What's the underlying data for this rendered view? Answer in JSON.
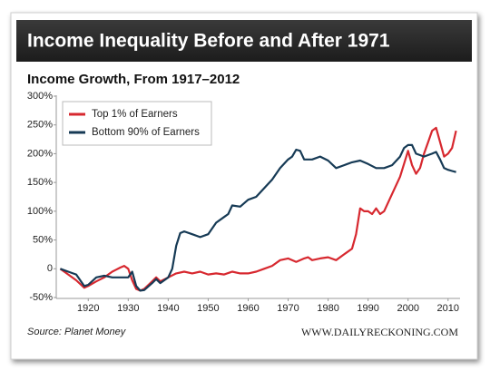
{
  "chart_data": {
    "type": "line",
    "title": "Income Inequality Before and After 1971",
    "subtitle": "Income Growth, From 1917–2012",
    "source": "Source: Planet Money",
    "credit": "WWW.DAILYRECKONING.COM",
    "xlim": [
      1912,
      2013
    ],
    "xticks": [
      1920,
      1930,
      1940,
      1950,
      1960,
      1970,
      1980,
      1990,
      2000,
      2010
    ],
    "ylim": [
      -50,
      300
    ],
    "yticks": [
      {
        "value": -50,
        "label": "-50%"
      },
      {
        "value": 0,
        "label": "0"
      },
      {
        "value": 50,
        "label": "50%"
      },
      {
        "value": 100,
        "label": "100%"
      },
      {
        "value": 150,
        "label": "150%"
      },
      {
        "value": 200,
        "label": "200%"
      },
      {
        "value": 250,
        "label": "250%"
      },
      {
        "value": 300,
        "label": "300%"
      }
    ],
    "legend": "upper left",
    "series": [
      {
        "name": "Top 1% of Earners",
        "color": "#d7282f",
        "x": [
          1913,
          1915,
          1917,
          1919,
          1920,
          1922,
          1924,
          1926,
          1928,
          1929,
          1930,
          1931,
          1932,
          1933,
          1934,
          1936,
          1937,
          1938,
          1940,
          1942,
          1944,
          1946,
          1948,
          1950,
          1952,
          1954,
          1956,
          1958,
          1960,
          1962,
          1964,
          1966,
          1968,
          1970,
          1972,
          1974,
          1975,
          1976,
          1978,
          1980,
          1982,
          1984,
          1986,
          1987,
          1988,
          1989,
          1990,
          1991,
          1992,
          1993,
          1994,
          1996,
          1998,
          2000,
          2001,
          2002,
          2003,
          2004,
          2005,
          2006,
          2007,
          2008,
          2009,
          2010,
          2011,
          2012
        ],
        "values": [
          0,
          -10,
          -20,
          -33,
          -30,
          -22,
          -15,
          -5,
          2,
          5,
          0,
          -20,
          -35,
          -38,
          -35,
          -22,
          -15,
          -22,
          -15,
          -8,
          -5,
          -8,
          -5,
          -10,
          -8,
          -10,
          -5,
          -8,
          -8,
          -5,
          0,
          5,
          15,
          18,
          12,
          18,
          20,
          15,
          18,
          20,
          15,
          25,
          35,
          60,
          105,
          100,
          100,
          95,
          105,
          95,
          100,
          130,
          160,
          205,
          180,
          165,
          175,
          200,
          220,
          240,
          245,
          220,
          195,
          200,
          210,
          240
        ]
      },
      {
        "name": "Bottom 90% of Earners",
        "color": "#163a55",
        "x": [
          1913,
          1915,
          1917,
          1919,
          1920,
          1922,
          1924,
          1926,
          1928,
          1930,
          1931,
          1932,
          1933,
          1934,
          1936,
          1937,
          1938,
          1940,
          1941,
          1942,
          1943,
          1944,
          1946,
          1948,
          1950,
          1952,
          1954,
          1955,
          1956,
          1958,
          1960,
          1962,
          1964,
          1966,
          1968,
          1970,
          1971,
          1972,
          1973,
          1974,
          1976,
          1978,
          1980,
          1982,
          1984,
          1986,
          1988,
          1990,
          1992,
          1994,
          1996,
          1998,
          1999,
          2000,
          2001,
          2002,
          2004,
          2006,
          2007,
          2008,
          2009,
          2010,
          2011,
          2012
        ],
        "values": [
          0,
          -5,
          -10,
          -30,
          -28,
          -15,
          -12,
          -15,
          -15,
          -15,
          -5,
          -30,
          -38,
          -37,
          -25,
          -18,
          -25,
          -15,
          0,
          40,
          62,
          65,
          60,
          55,
          60,
          80,
          90,
          95,
          110,
          108,
          120,
          125,
          140,
          155,
          175,
          190,
          195,
          207,
          205,
          190,
          190,
          195,
          188,
          175,
          180,
          185,
          188,
          182,
          175,
          175,
          180,
          195,
          210,
          215,
          215,
          200,
          195,
          200,
          203,
          190,
          175,
          172,
          170,
          168
        ]
      }
    ]
  }
}
